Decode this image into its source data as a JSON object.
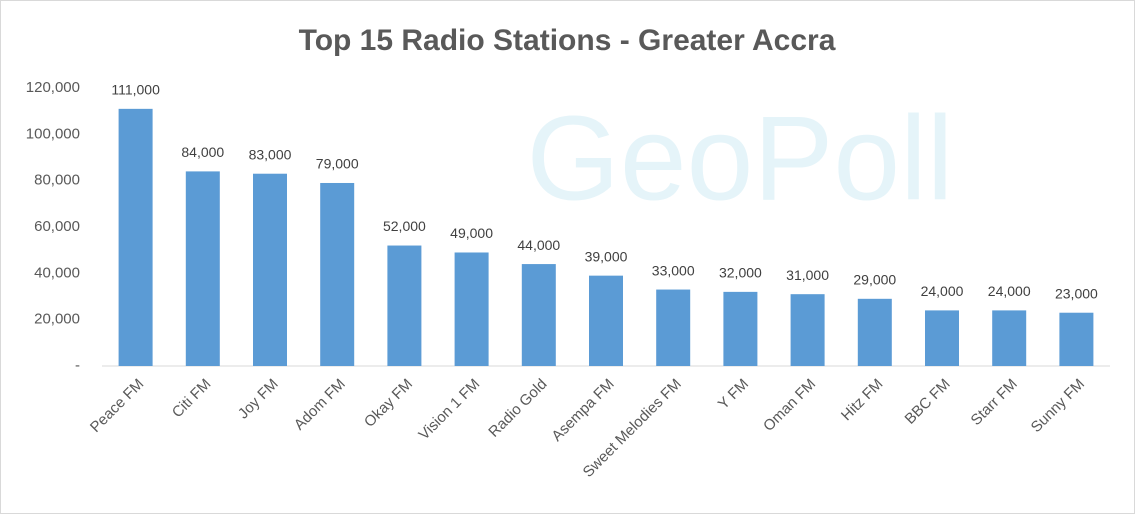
{
  "chart_data": {
    "type": "bar",
    "title": "Top 15 Radio Stations - Greater Accra",
    "watermark": "GeoPoll",
    "categories": [
      "Peace FM",
      "Citi FM",
      "Joy FM",
      "Adom FM",
      "Okay FM",
      "Vision 1 FM",
      "Radio Gold",
      "Asempa FM",
      "Sweet Melodies FM",
      "Y FM",
      "Oman FM",
      "Hitz FM",
      "BBC FM",
      "Starr FM",
      "Sunny FM"
    ],
    "values": [
      111000,
      84000,
      83000,
      79000,
      52000,
      49000,
      44000,
      39000,
      33000,
      32000,
      31000,
      29000,
      24000,
      24000,
      23000
    ],
    "value_labels": [
      "111,000",
      "84,000",
      "83,000",
      "79,000",
      "52,000",
      "49,000",
      "44,000",
      "39,000",
      "33,000",
      "32,000",
      "31,000",
      "29,000",
      "24,000",
      "24,000",
      "23,000"
    ],
    "color": "#5b9bd5",
    "ylim": [
      0,
      120000
    ],
    "yticks": [
      {
        "value": 0,
        "label": "-"
      },
      {
        "value": 20000,
        "label": "20,000"
      },
      {
        "value": 40000,
        "label": "40,000"
      },
      {
        "value": 60000,
        "label": "60,000"
      },
      {
        "value": 80000,
        "label": "80,000"
      },
      {
        "value": 100000,
        "label": "100,000"
      },
      {
        "value": 120000,
        "label": "120,000"
      }
    ],
    "grid": false
  }
}
